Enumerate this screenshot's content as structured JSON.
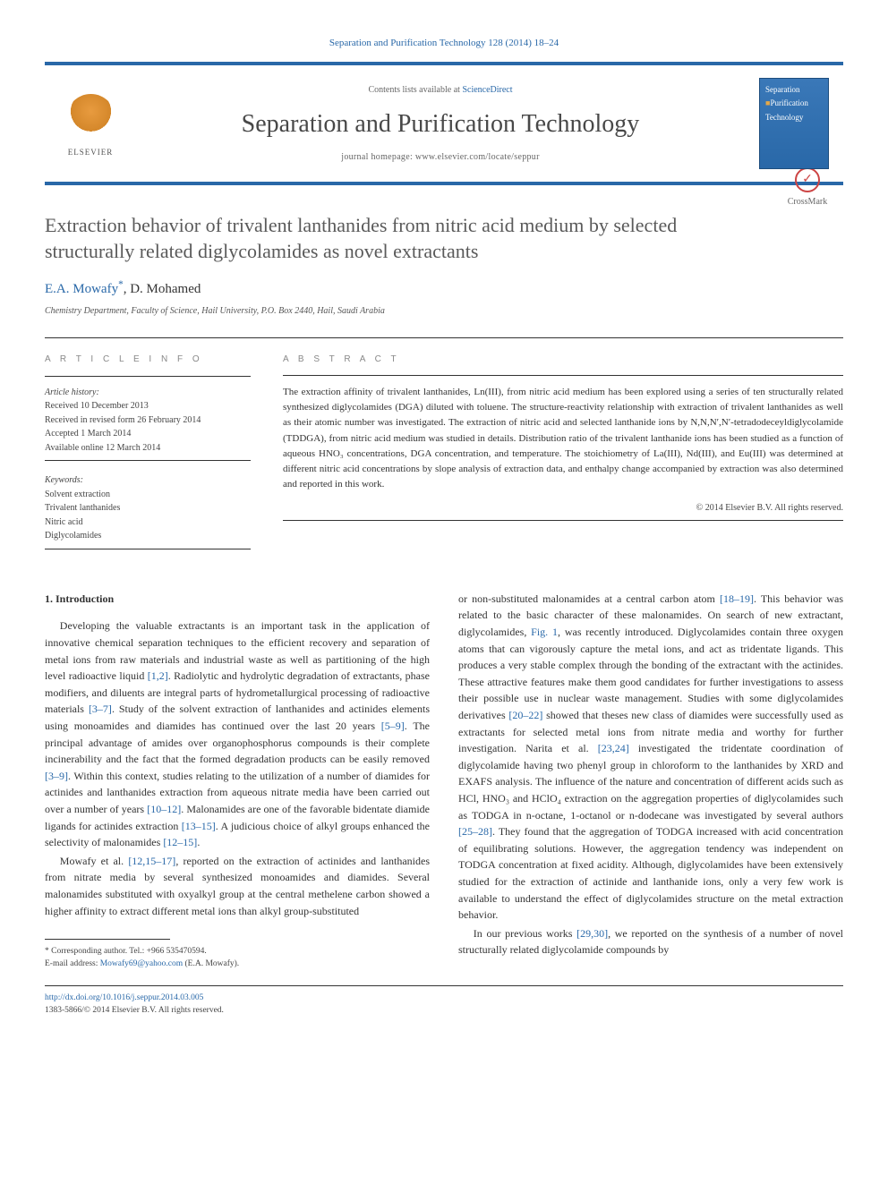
{
  "journal_ref": "Separation and Purification Technology 128 (2014) 18–24",
  "header": {
    "publisher": "ELSEVIER",
    "contents_prefix": "Contents lists available at ",
    "contents_link": "ScienceDirect",
    "journal_title": "Separation and Purification Technology",
    "homepage_label": "journal homepage: ",
    "homepage_url": "www.elsevier.com/locate/seppur",
    "cover_line1": "Separation",
    "cover_line2": "Purification",
    "cover_line3": "Technology"
  },
  "crossmark_label": "CrossMark",
  "article": {
    "title": "Extraction behavior of trivalent lanthanides from nitric acid medium by selected structurally related diglycolamides as novel extractants",
    "authors_html": "E.A. Mowafy",
    "author_marker": "*",
    "author_sep": ", ",
    "author2": "D. Mohamed",
    "affiliation": "Chemistry Department, Faculty of Science, Hail University, P.O. Box 2440, Hail, Saudi Arabia"
  },
  "info": {
    "label": "A R T I C L E   I N F O",
    "history_label": "Article history:",
    "received": "Received 10 December 2013",
    "revised": "Received in revised form 26 February 2014",
    "accepted": "Accepted 1 March 2014",
    "online": "Available online 12 March 2014",
    "keywords_label": "Keywords:",
    "keywords": [
      "Solvent extraction",
      "Trivalent lanthanides",
      "Nitric acid",
      "Diglycolamides"
    ]
  },
  "abstract": {
    "label": "A B S T R A C T",
    "text": "The extraction affinity of trivalent lanthanides, Ln(III), from nitric acid medium has been explored using a series of ten structurally related synthesized diglycolamides (DGA) diluted with toluene. The structure-reactivity relationship with extraction of trivalent lanthanides as well as their atomic number was investigated. The extraction of nitric acid and selected lanthanide ions by N,N,N′,N′-tetradodeceyldiglycolamide (TDDGA), from nitric acid medium was studied in details. Distribution ratio of the trivalent lanthanide ions has been studied as a function of aqueous HNO₃ concentrations, DGA concentration, and temperature. The stoichiometry of La(III), Nd(III), and Eu(III) was determined at different nitric acid concentrations by slope analysis of extraction data, and enthalpy change accompanied by extraction was also determined and reported in this work.",
    "copyright": "© 2014 Elsevier B.V. All rights reserved."
  },
  "body": {
    "heading": "1. Introduction",
    "p1": "Developing the valuable extractants is an important task in the application of innovative chemical separation techniques to the efficient recovery and separation of metal ions from raw materials and industrial waste as well as partitioning of the high level radioactive liquid [1,2]. Radiolytic and hydrolytic degradation of extractants, phase modifiers, and diluents are integral parts of hydrometallurgical processing of radioactive materials [3–7]. Study of the solvent extraction of lanthanides and actinides elements using monoamides and diamides has continued over the last 20 years [5–9]. The principal advantage of amides over organophosphorus compounds is their complete incinerability and the fact that the formed degradation products can be easily removed [3–9]. Within this context, studies relating to the utilization of a number of diamides for actinides and lanthanides extraction from aqueous nitrate media have been carried out over a number of years [10–12]. Malonamides are one of the favorable bidentate diamide ligands for actinides extraction [13–15]. A judicious choice of alkyl groups enhanced the selectivity of malonamides [12–15].",
    "p2": "Mowafy et al. [12,15–17], reported on the extraction of actinides and lanthanides from nitrate media by several synthesized monoamides and diamides. Several malonamides substituted with oxyalkyl group at the central methelene carbon showed a higher affinity to extract different metal ions than alkyl group-substituted",
    "p3": "or non-substituted malonamides at a central carbon atom [18–19]. This behavior was related to the basic character of these malonamides. On search of new extractant, diglycolamides, Fig. 1, was recently introduced. Diglycolamides contain three oxygen atoms that can vigorously capture the metal ions, and act as tridentate ligands. This produces a very stable complex through the bonding of the extractant with the actinides. These attractive features make them good candidates for further investigations to assess their possible use in nuclear waste management. Studies with some diglycolamides derivatives [20–22] showed that theses new class of diamides were successfully used as extractants for selected metal ions from nitrate media and worthy for further investigation. Narita et al. [23,24] investigated the tridentate coordination of diglycolamide having two phenyl group in chloroform to the lanthanides by XRD and EXAFS analysis. The influence of the nature and concentration of different acids such as HCl, HNO₃ and HClO₄ extraction on the aggregation properties of diglycolamides such as TODGA in n-octane, 1-octanol or n-dodecane was investigated by several authors [25–28]. They found that the aggregation of TODGA increased with acid concentration of equilibrating solutions. However, the aggregation tendency was independent on TODGA concentration at fixed acidity. Although, diglycolamides have been extensively studied for the extraction of actinide and lanthanide ions, only a very few work is available to understand the effect of diglycolamides structure on the metal extraction behavior.",
    "p4": "In our previous works [29,30], we reported on the synthesis of a number of novel structurally related diglycolamide compounds by"
  },
  "footnote": {
    "corr_label": "* Corresponding author. Tel.: +966 535470594.",
    "email_label": "E-mail address: ",
    "email": "Mowafy69@yahoo.com",
    "email_suffix": " (E.A. Mowafy)."
  },
  "footer": {
    "doi": "http://dx.doi.org/10.1016/j.seppur.2014.03.005",
    "issn_line": "1383-5866/© 2014 Elsevier B.V. All rights reserved."
  },
  "colors": {
    "link": "#2968a8",
    "rule": "#333333",
    "text": "#333333"
  }
}
